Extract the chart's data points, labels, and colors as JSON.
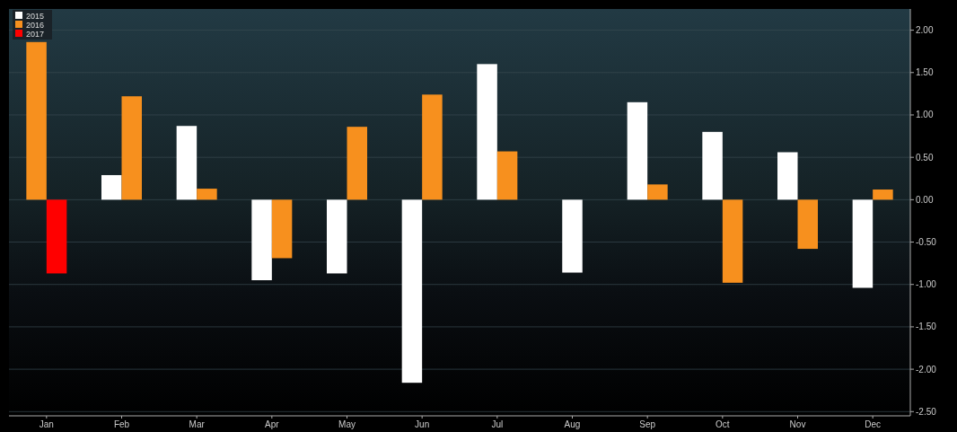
{
  "chart_data": {
    "type": "bar",
    "categories": [
      "Jan",
      "Feb",
      "Mar",
      "Apr",
      "May",
      "Jun",
      "Jul",
      "Aug",
      "Sep",
      "Oct",
      "Nov",
      "Dec"
    ],
    "series": [
      {
        "name": "2015",
        "color": "#ffffff",
        "values": [
          null,
          0.29,
          0.87,
          -0.95,
          -0.87,
          -2.16,
          1.6,
          -0.86,
          1.15,
          0.8,
          0.56,
          -1.04
        ]
      },
      {
        "name": "2016",
        "color": "#f7901e",
        "values": [
          1.86,
          1.22,
          0.13,
          -0.69,
          0.86,
          1.24,
          0.57,
          null,
          0.18,
          -0.98,
          -0.58,
          0.12
        ]
      },
      {
        "name": "2017",
        "color": "#ff0000",
        "values": [
          -0.87,
          null,
          null,
          null,
          null,
          null,
          null,
          null,
          null,
          null,
          null,
          null
        ]
      }
    ],
    "ylim": [
      -2.55,
      2.25
    ],
    "yticks": [
      {
        "value": 2,
        "label": "2.00"
      },
      {
        "value": 1.5,
        "label": "1.50"
      },
      {
        "value": 1,
        "label": "1.00"
      },
      {
        "value": 0.5,
        "label": "0.50"
      },
      {
        "value": 0,
        "label": "0.00"
      },
      {
        "value": -0.5,
        "label": "-0.50"
      },
      {
        "value": -1,
        "label": "-1.00"
      },
      {
        "value": -1.5,
        "label": "-1.50"
      },
      {
        "value": -2,
        "label": "-2.00"
      },
      {
        "value": -2.5,
        "label": "-2.50"
      }
    ],
    "grid": "y",
    "legend": "top left"
  }
}
